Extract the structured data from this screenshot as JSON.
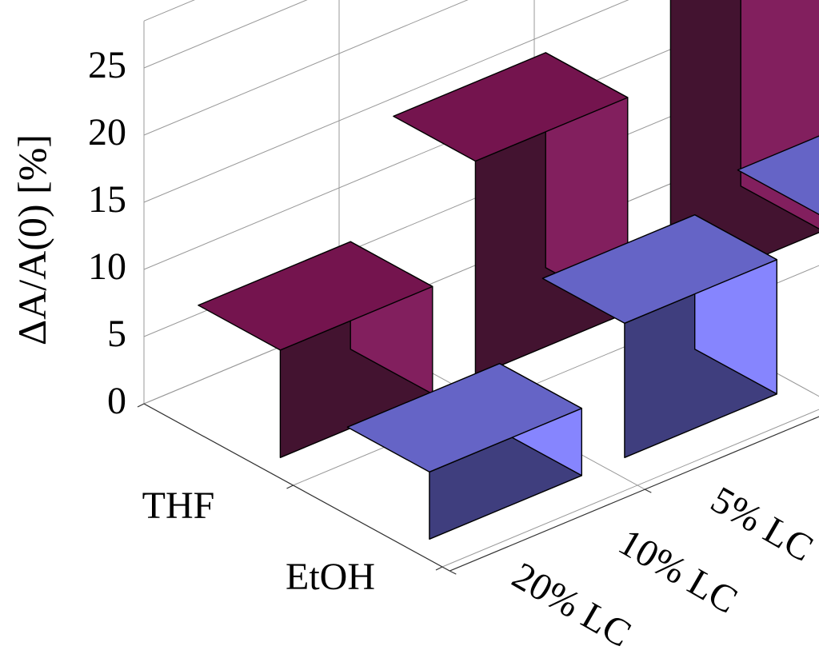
{
  "chart_data": {
    "type": "bar",
    "ylabel": "ΔA/A(0) [%]",
    "ylim": [
      0,
      25
    ],
    "yticks": [
      "0",
      "5",
      "10",
      "15",
      "20",
      "25"
    ],
    "categories": [
      "5% LC",
      "10% LC",
      "20% LC"
    ],
    "series": [
      {
        "name": "THF",
        "values": [
          27,
          16,
          8
        ],
        "colors": {
          "front": "#431330",
          "side": "#821f5e",
          "top": "#74144e"
        }
      },
      {
        "name": "EtOH",
        "values": [
          12,
          10,
          5
        ],
        "colors": {
          "front": "#3f3e7e",
          "side": "#8685fe",
          "top": "#6564c6"
        }
      }
    ],
    "grid": true
  }
}
